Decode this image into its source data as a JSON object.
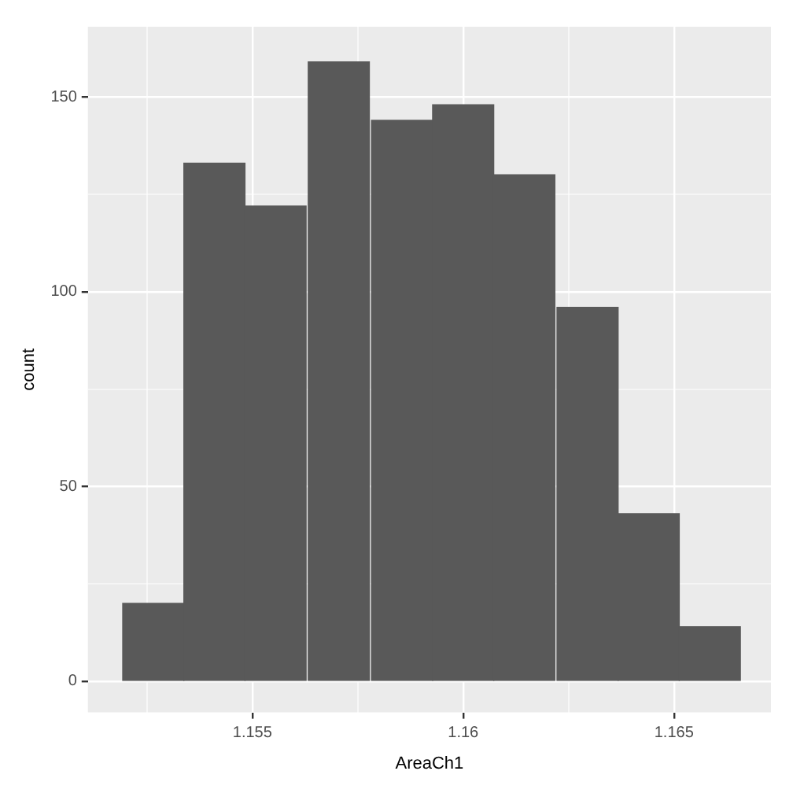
{
  "chart_data": {
    "type": "histogram",
    "xlabel": "AreaCh1",
    "ylabel": "count",
    "color": "#595959",
    "bins": [
      1.1519,
      1.1534,
      1.1548,
      1.1563,
      1.1578,
      1.1593,
      1.1607,
      1.1622,
      1.1637,
      1.1651,
      1.1666
    ],
    "values": [
      20,
      133,
      122,
      159,
      144,
      148,
      130,
      96,
      43,
      14
    ],
    "xlim": [
      1.1511,
      1.1673
    ],
    "xticks": [
      {
        "value": 1.1525,
        "label": null
      },
      1.155,
      {
        "value": 1.1575,
        "label": null
      },
      1.16,
      {
        "value": 1.1625,
        "label": null
      },
      1.165
    ],
    "ylim": [
      -8,
      168
    ],
    "yticks": [
      0,
      {
        "value": 25,
        "label": null
      },
      50,
      {
        "value": 75,
        "label": null
      },
      100,
      {
        "value": 125,
        "label": null
      },
      150
    ],
    "grid": true
  }
}
